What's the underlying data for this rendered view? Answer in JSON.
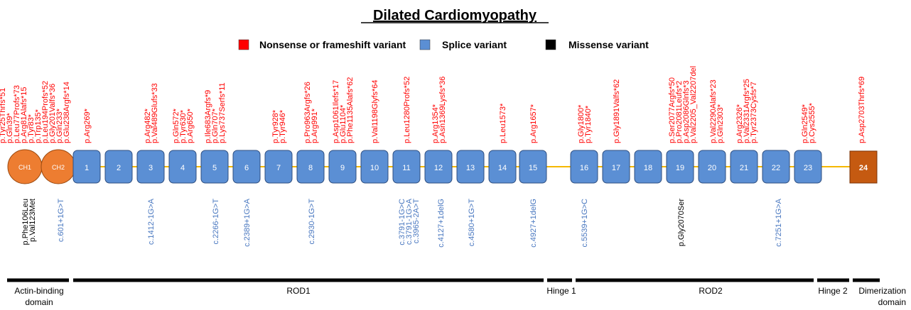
{
  "title": "Dilated Cardiomyopathy",
  "legend": [
    {
      "label": "Nonsense or frameshift variant",
      "color": "#ff0000"
    },
    {
      "label": "Splice variant",
      "color": "#5b8fd4"
    },
    {
      "label": "Missense variant",
      "color": "#000000"
    }
  ],
  "domains": [
    "CH1",
    "CH2"
  ],
  "exons": [
    "1",
    "2",
    "3",
    "4",
    "5",
    "6",
    "7",
    "8",
    "9",
    "10",
    "11",
    "12",
    "13",
    "14",
    "15",
    "16",
    "17",
    "18",
    "19",
    "20",
    "21",
    "22",
    "23",
    "24"
  ],
  "top_variants": [
    [
      "p.Tyr25Thrfs*51",
      "p.Gln39*",
      "p.Leu77Profs*73",
      "p.Arg81Alafs*15",
      "p.Tyr83*",
      "p.Trp135*",
      "p.Leu194Profs*52",
      "p.Gly201Valfs*36",
      "p.Gln233*",
      "p.Glu238Argfs*14"
    ],
    [
      "p.Arg269*"
    ],
    [
      "p.Arg482*",
      "p.Val489Glufs*33"
    ],
    [
      "p.Gln572*",
      "p.Tyr630*",
      "p.Arg650*"
    ],
    [
      "p.Ile683Argfs*9",
      "p.Gln707*",
      "p.Lys737Serfs*11"
    ],
    [
      "p.Tyr928*",
      "p.Tyr946*"
    ],
    [
      "p.Pro963Argfs*26",
      "p.Arg991*"
    ],
    [
      "p.Asp1061Ilefs*17",
      "p.Glu1104*",
      "p.Phe1135Alafs*62"
    ],
    [
      "p.Val1198Glyfs*64"
    ],
    [
      "p.Leu1280Profs*52"
    ],
    [
      "p.Arg1354*",
      "p.Asn1369Lysfs*36"
    ],
    [
      "p.Leu1573*"
    ],
    [
      "p.Arg1657*"
    ],
    [
      "p.Gly1800*",
      "p.Tyr1840*"
    ],
    [
      "p.Gly1891Valfs*62"
    ],
    [
      "p.Ser2077Argfs*50",
      "p.Pro2081Leufs*2",
      "p.Asp2086Glnfs*3",
      "p.Val2205_Val2207del"
    ],
    [
      "p.Val2290Alafs*23",
      "p.Gln2303*"
    ],
    [
      "p.Arg2326*",
      "p.Val2331Argfs*25",
      "p.Tyr2373Cysfs*7"
    ],
    [
      "p.Gln2549*",
      "p.Cys2555*"
    ],
    [
      "p.Asp2703Thrfs*69"
    ]
  ],
  "bottom_variants": [
    {
      "color": "#000000",
      "lines": [
        "p.Phe106Leu",
        "p.Val123Met"
      ]
    },
    {
      "color": "#4a78c0",
      "lines": [
        "c.601+1G>T"
      ]
    },
    {
      "color": "#4a78c0",
      "lines": [
        "c.1412-1G>A"
      ]
    },
    {
      "color": "#4a78c0",
      "lines": [
        "c.2266-1G>T"
      ]
    },
    {
      "color": "#4a78c0",
      "lines": [
        "c.2389+1G>A"
      ]
    },
    {
      "color": "#4a78c0",
      "lines": [
        "c.2930-1G>T"
      ]
    },
    {
      "color": "#4a78c0",
      "lines": [
        "c.3791-1G>C",
        "c.3791-1G>A",
        "c.3965-2A>T"
      ]
    },
    {
      "color": "#4a78c0",
      "lines": [
        "c.4127+1delG"
      ]
    },
    {
      "color": "#4a78c0",
      "lines": [
        "c.4580+1G>T"
      ]
    },
    {
      "color": "#4a78c0",
      "lines": [
        "c.4927+1delG"
      ]
    },
    {
      "color": "#4a78c0",
      "lines": [
        "c.5539+1G>C"
      ]
    },
    {
      "color": "#000000",
      "lines": [
        "p.Gly2070Ser"
      ]
    },
    {
      "color": "#4a78c0",
      "lines": [
        "c.7251+1G>A"
      ]
    }
  ],
  "regions": [
    [
      "Actin-binding",
      "domain"
    ],
    [
      "ROD1"
    ],
    [
      "Hinge 1"
    ],
    [
      "ROD2"
    ],
    [
      "Hinge 2"
    ],
    [
      "Dimerization",
      "domain"
    ]
  ]
}
